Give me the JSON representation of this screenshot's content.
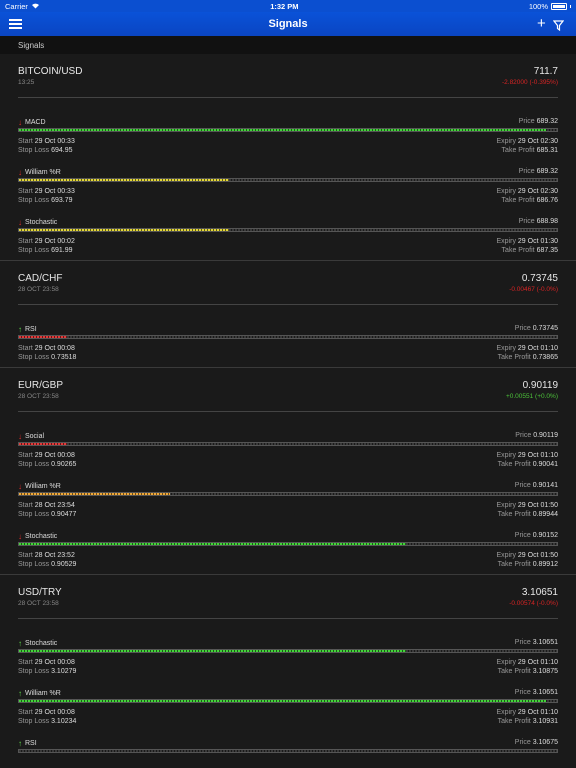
{
  "status": {
    "carrier": "Carrier",
    "time": "1:32 PM",
    "battery": "100%"
  },
  "nav": {
    "title": "Signals"
  },
  "section": {
    "label": "Signals"
  },
  "labels": {
    "price": "Price",
    "start": "Start",
    "stop_loss": "Stop Loss",
    "expiry": "Expiry",
    "take_profit": "Take Profit"
  },
  "pairs": [
    {
      "name": "BITCOIN/USD",
      "time": "13:25",
      "price": "711.7",
      "change": "-2.82000 (-0.395%)",
      "change_dir": "neg",
      "signals": [
        {
          "name": "MACD",
          "dir": "down",
          "price": "689.32",
          "start": "29 Oct 00:33",
          "stop_loss": "694.95",
          "expiry": "29 Oct 02:30",
          "take_profit": "685.31",
          "progress": 0.98,
          "color": "green"
        },
        {
          "name": "William %R",
          "dir": "down",
          "price": "689.32",
          "start": "29 Oct 00:33",
          "stop_loss": "693.79",
          "expiry": "29 Oct 02:30",
          "take_profit": "686.76",
          "progress": 0.39,
          "color": "yellow"
        },
        {
          "name": "Stochastic",
          "dir": "down",
          "price": "688.98",
          "start": "29 Oct 00:02",
          "stop_loss": "691.99",
          "expiry": "29 Oct 01:30",
          "take_profit": "687.35",
          "progress": 0.39,
          "color": "yellow"
        }
      ]
    },
    {
      "name": "CAD/CHF",
      "time": "28 OCT 23:58",
      "price": "0.73745",
      "change": "-0.00467 (-0.0%)",
      "change_dir": "neg",
      "signals": [
        {
          "name": "RSI",
          "dir": "up",
          "price": "0.73745",
          "start": "29 Oct 00:08",
          "stop_loss": "0.73518",
          "expiry": "29 Oct 01:10",
          "take_profit": "0.73865",
          "progress": 0.09,
          "color": "red"
        }
      ]
    },
    {
      "name": "EUR/GBP",
      "time": "28 OCT 23:58",
      "price": "0.90119",
      "change": "+0.00551 (+0.0%)",
      "change_dir": "pos",
      "signals": [
        {
          "name": "Social",
          "dir": "down",
          "price": "0.90119",
          "start": "29 Oct 00:08",
          "stop_loss": "0.90265",
          "expiry": "29 Oct 01:10",
          "take_profit": "0.90041",
          "progress": 0.09,
          "color": "red"
        },
        {
          "name": "William %R",
          "dir": "down",
          "price": "0.90141",
          "start": "28 Oct 23:54",
          "stop_loss": "0.90477",
          "expiry": "29 Oct 01:50",
          "take_profit": "0.89944",
          "progress": 0.28,
          "color": "orange"
        },
        {
          "name": "Stochastic",
          "dir": "down",
          "price": "0.90152",
          "start": "28 Oct 23:52",
          "stop_loss": "0.90529",
          "expiry": "29 Oct 01:50",
          "take_profit": "0.89912",
          "progress": 0.72,
          "color": "green"
        }
      ]
    },
    {
      "name": "USD/TRY",
      "time": "28 OCT 23:58",
      "price": "3.10651",
      "change": "-0.00574 (-0.0%)",
      "change_dir": "neg",
      "signals": [
        {
          "name": "Stochastic",
          "dir": "up",
          "price": "3.10651",
          "start": "29 Oct 00:08",
          "stop_loss": "3.10279",
          "expiry": "29 Oct 01:10",
          "take_profit": "3.10875",
          "progress": 0.72,
          "color": "green"
        },
        {
          "name": "William %R",
          "dir": "up",
          "price": "3.10651",
          "start": "29 Oct 00:08",
          "stop_loss": "3.10234",
          "expiry": "29 Oct 01:10",
          "take_profit": "3.10931",
          "progress": 0.98,
          "color": "green"
        },
        {
          "name": "RSI",
          "dir": "up",
          "price": "3.10675",
          "start": "",
          "stop_loss": "",
          "expiry": "",
          "take_profit": "",
          "progress": 0,
          "color": "green"
        }
      ]
    }
  ]
}
